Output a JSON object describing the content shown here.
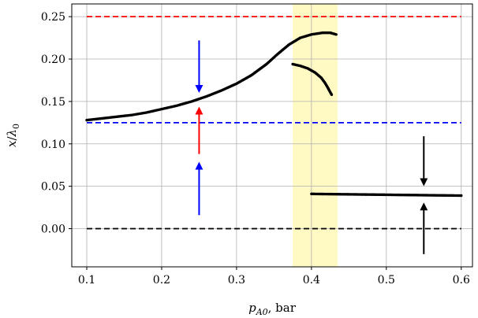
{
  "chart_data": {
    "type": "scatter",
    "title": "",
    "xlabel_var": "p",
    "xlabel_sub": "A0",
    "xlabel_unit": ", bar",
    "ylabel_num": "x",
    "ylabel_den": "λ",
    "ylabel_sub": "0",
    "xlim": [
      0.08,
      0.615
    ],
    "ylim": [
      -0.045,
      0.265
    ],
    "grid": true,
    "xticks": [
      0.1,
      0.2,
      0.3,
      0.4,
      0.5,
      0.6
    ],
    "xtick_labels": [
      "0.1",
      "0.2",
      "0.3",
      "0.4",
      "0.5",
      "0.6"
    ],
    "yticks": [
      0.0,
      0.05,
      0.1,
      0.15,
      0.2,
      0.25
    ],
    "ytick_labels": [
      "0.00",
      "0.05",
      "0.10",
      "0.15",
      "0.20",
      "0.25"
    ],
    "shaded_region": {
      "x": [
        0.375,
        0.435
      ],
      "color": "#fffac4"
    },
    "hlines": [
      {
        "y": 0.25,
        "x": [
          0.1,
          0.6
        ],
        "color": "#ff0000",
        "style": "dashed"
      },
      {
        "y": 0.125,
        "x": [
          0.1,
          0.6
        ],
        "color": "#0000ff",
        "style": "dashed"
      },
      {
        "y": 0.0,
        "x": [
          0.1,
          0.6
        ],
        "color": "#000000",
        "style": "dashed"
      }
    ],
    "series": [
      {
        "color": "#000000",
        "points": [
          [
            0.1,
            0.128
          ],
          [
            0.12,
            0.13
          ],
          [
            0.14,
            0.132
          ],
          [
            0.16,
            0.134
          ],
          [
            0.18,
            0.137
          ],
          [
            0.2,
            0.141
          ],
          [
            0.22,
            0.145
          ],
          [
            0.24,
            0.15
          ],
          [
            0.26,
            0.156
          ],
          [
            0.28,
            0.163
          ],
          [
            0.3,
            0.171
          ],
          [
            0.32,
            0.181
          ],
          [
            0.34,
            0.194
          ],
          [
            0.355,
            0.206
          ],
          [
            0.37,
            0.217
          ],
          [
            0.385,
            0.225
          ],
          [
            0.4,
            0.229
          ],
          [
            0.415,
            0.231
          ],
          [
            0.425,
            0.231
          ],
          [
            0.433,
            0.229
          ]
        ]
      },
      {
        "color": "#000000",
        "points": [
          [
            0.375,
            0.194
          ],
          [
            0.385,
            0.192
          ],
          [
            0.395,
            0.189
          ],
          [
            0.405,
            0.184
          ],
          [
            0.413,
            0.178
          ],
          [
            0.418,
            0.172
          ],
          [
            0.422,
            0.166
          ],
          [
            0.425,
            0.161
          ],
          [
            0.427,
            0.158
          ]
        ]
      },
      {
        "color": "#000000",
        "points": [
          [
            0.4,
            0.041
          ],
          [
            0.45,
            0.0405
          ],
          [
            0.5,
            0.04
          ],
          [
            0.55,
            0.0395
          ],
          [
            0.6,
            0.039
          ]
        ]
      }
    ],
    "arrows": [
      {
        "color": "#0000ff",
        "x": 0.25,
        "from": 0.222,
        "to": 0.162
      },
      {
        "color": "#ff0000",
        "x": 0.25,
        "from": 0.088,
        "to": 0.142
      },
      {
        "color": "#0000ff",
        "x": 0.25,
        "from": 0.016,
        "to": 0.077
      },
      {
        "color": "#000000",
        "x": 0.55,
        "from": 0.109,
        "to": 0.052
      },
      {
        "color": "#000000",
        "x": 0.55,
        "from": -0.03,
        "to": 0.029
      }
    ]
  }
}
